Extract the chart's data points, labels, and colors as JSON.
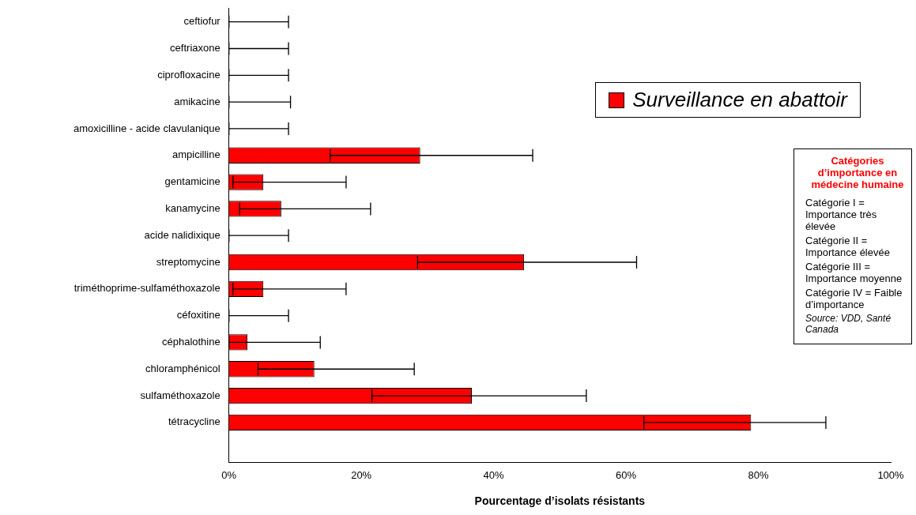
{
  "chart_data": {
    "type": "bar",
    "orientation": "horizontal",
    "xlabel": "Pourcentage d’isolats résistants",
    "categories": [
      "ceftiofur",
      "ceftriaxone",
      "ciprofloxacine",
      "amikacine",
      "amoxicilline - acide clavulanique",
      "ampicilline",
      "gentamicine",
      "kanamycine",
      "acide nalidixique",
      "streptomycine",
      "triméthoprime-sulfaméthoxazole",
      "céfoxitine",
      "céphalothine",
      "chloramphénicol",
      "sulfaméthoxazole",
      "tétracycline",
      null
    ],
    "series": [
      {
        "name": "Surveillance en abattoir",
        "color": "#ff0000",
        "values": [
          0,
          0,
          0,
          0,
          0,
          28.9,
          5.2,
          7.9,
          0,
          44.6,
          5.2,
          0,
          2.8,
          12.9,
          36.7,
          78.9,
          null
        ],
        "errors": [
          [
            0,
            9
          ],
          [
            0,
            9
          ],
          [
            0,
            9
          ],
          [
            0,
            9.3
          ],
          [
            0,
            9
          ],
          [
            15.3,
            45.9
          ],
          [
            0.6,
            17.7
          ],
          [
            1.6,
            21.4
          ],
          [
            0,
            9
          ],
          [
            28.5,
            61.6
          ],
          [
            0.6,
            17.7
          ],
          [
            0,
            9
          ],
          [
            0,
            13.8
          ],
          [
            4.4,
            28
          ],
          [
            21.6,
            54
          ],
          [
            62.7,
            90.2
          ],
          null
        ]
      }
    ],
    "xlim": [
      0,
      100
    ],
    "xticks": [
      {
        "value": 0,
        "label": "0%"
      },
      {
        "value": 20,
        "label": "20%"
      },
      {
        "value": 40,
        "label": "40%"
      },
      {
        "value": 60,
        "label": "60%"
      },
      {
        "value": 80,
        "label": "80%"
      },
      {
        "value": 100,
        "label": "100%"
      }
    ],
    "grid": false,
    "legend": "top right",
    "annotations": [
      "Catégories d’importance en médecine humaine",
      "Catégorie I = Importance très élevée",
      "Catégorie II = Importance élevée",
      "Catégorie III = Importance moyenne",
      "Catégorie IV = Faible d’importance",
      "Source: VDD, Santé Canada"
    ]
  }
}
